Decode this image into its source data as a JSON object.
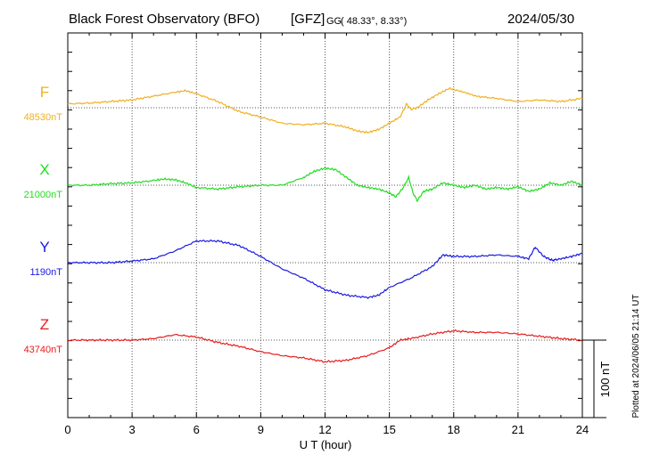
{
  "header": {
    "title": "Black Forest Observatory (BFO)",
    "org": "[GFZ]",
    "coord_prefix": "GG",
    "coords": "( 48.33°,   8.33°)",
    "date": "2024/05/30"
  },
  "chart_data": {
    "type": "line",
    "xlabel": "U T (hour)",
    "xlim": [
      0,
      24
    ],
    "xticks": [
      "0",
      "3",
      "6",
      "9",
      "12",
      "15",
      "18",
      "21",
      "24"
    ],
    "grid": true,
    "scale_bar_label": "100 nT",
    "plotted_note": "Plotted at 2024/06/05 21:14 UT",
    "series": [
      {
        "name": "F",
        "baseline_label": "48530nT",
        "color": "#f0b020",
        "hours": [
          0,
          1,
          2,
          3,
          4,
          5,
          5.5,
          6,
          7,
          8,
          9,
          10,
          11,
          12,
          13,
          13.5,
          14,
          14.5,
          15,
          15.5,
          15.8,
          16,
          16.3,
          16.8,
          17.3,
          17.8,
          18.2,
          19,
          20,
          21,
          22,
          23,
          24
        ],
        "nT": [
          5,
          6,
          8,
          10,
          15,
          20,
          22,
          18,
          8,
          -5,
          -12,
          -20,
          -22,
          -20,
          -25,
          -30,
          -32,
          -28,
          -20,
          -12,
          5,
          -2,
          0,
          10,
          18,
          25,
          22,
          15,
          12,
          8,
          10,
          8,
          12
        ]
      },
      {
        "name": "X",
        "baseline_label": "21000nT",
        "color": "#22dd22",
        "hours": [
          0,
          1,
          2,
          3,
          4,
          4.5,
          5,
          5.5,
          6,
          7,
          8,
          9,
          10,
          11,
          11.5,
          12,
          12.5,
          13,
          13.5,
          14,
          14.5,
          15,
          15.3,
          15.6,
          15.9,
          16.1,
          16.3,
          16.6,
          17,
          17.5,
          18,
          18.5,
          19,
          19.5,
          20,
          20.5,
          21,
          21.5,
          22,
          22.5,
          23,
          23.5,
          24
        ],
        "nT": [
          0,
          0,
          2,
          3,
          6,
          8,
          7,
          3,
          -3,
          -5,
          -2,
          0,
          0,
          10,
          18,
          22,
          20,
          10,
          0,
          -3,
          -5,
          -10,
          -15,
          -5,
          10,
          -10,
          -20,
          -8,
          -5,
          3,
          0,
          -3,
          0,
          -5,
          -3,
          -5,
          -2,
          -8,
          -5,
          3,
          0,
          5,
          0
        ]
      },
      {
        "name": "Y",
        "baseline_label": "1190nT",
        "color": "#1a1ae0",
        "hours": [
          0,
          1,
          2,
          3,
          4,
          5,
          6,
          7,
          8,
          9,
          10,
          11,
          12,
          13,
          14,
          14.5,
          15,
          16,
          17,
          17.5,
          18,
          19,
          20,
          21,
          21.5,
          21.8,
          22.2,
          22.6,
          23,
          23.5,
          24
        ],
        "nT": [
          0,
          0,
          0,
          2,
          5,
          15,
          28,
          28,
          22,
          8,
          -8,
          -20,
          -35,
          -42,
          -45,
          -42,
          -32,
          -20,
          -5,
          10,
          8,
          8,
          10,
          8,
          5,
          20,
          8,
          3,
          5,
          8,
          12
        ]
      },
      {
        "name": "Z",
        "baseline_label": "43740nT",
        "color": "#e81c1c",
        "hours": [
          0,
          1,
          2,
          3,
          4,
          5,
          6,
          7,
          8,
          9,
          10,
          11,
          12,
          13,
          14,
          15,
          15.5,
          16,
          17,
          18,
          19,
          20,
          21,
          22,
          23,
          24
        ],
        "nT": [
          0,
          0,
          0,
          0,
          2,
          7,
          4,
          -3,
          -8,
          -15,
          -20,
          -23,
          -28,
          -26,
          -20,
          -10,
          0,
          2,
          8,
          12,
          10,
          10,
          8,
          5,
          2,
          0
        ]
      }
    ]
  }
}
